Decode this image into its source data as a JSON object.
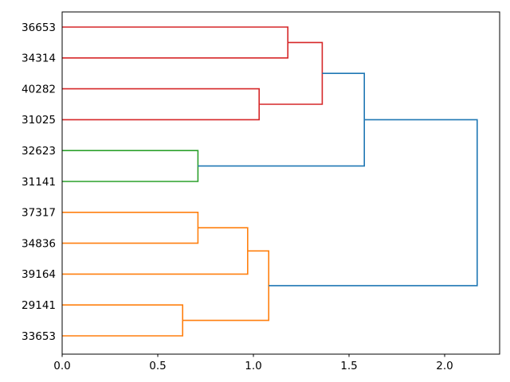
{
  "figure": {
    "background": "#ffffff",
    "frame_color": "#000000"
  },
  "chart_data": {
    "type": "dendrogram",
    "orientation": "leaves-left-root-right",
    "title": "",
    "xlabel": "",
    "ylabel": "",
    "grid": false,
    "legend": null,
    "xlim": [
      0,
      2.2875
    ],
    "xtick_labels": [
      "0.0",
      "0.5",
      "1.0",
      "1.5",
      "2.0"
    ],
    "xtick_values": [
      0,
      0.5,
      1.0,
      1.5,
      2.0
    ],
    "leaves": [
      "36653",
      "34314",
      "40282",
      "31025",
      "32623",
      "31141",
      "37317",
      "34836",
      "39164",
      "29141",
      "33653"
    ],
    "merges": [
      {
        "id": "n-green-1",
        "children": [
          "32623",
          "31141"
        ],
        "distance": 0.71,
        "color": "green"
      },
      {
        "id": "n-red-1",
        "children": [
          "36653",
          "34314"
        ],
        "distance": 1.18,
        "color": "red"
      },
      {
        "id": "n-red-2",
        "children": [
          "40282",
          "31025"
        ],
        "distance": 1.03,
        "color": "red"
      },
      {
        "id": "n-red-3",
        "children": [
          "n-red-1",
          "n-red-2"
        ],
        "distance": 1.36,
        "color": "red"
      },
      {
        "id": "n-blue-1",
        "children": [
          "n-red-3",
          "n-green-1"
        ],
        "distance": 1.58,
        "color": "blue"
      },
      {
        "id": "n-orange-1",
        "children": [
          "37317",
          "34836"
        ],
        "distance": 0.71,
        "color": "orange"
      },
      {
        "id": "n-orange-2",
        "children": [
          "n-orange-1",
          "39164"
        ],
        "distance": 0.97,
        "color": "orange"
      },
      {
        "id": "n-orange-3",
        "children": [
          "29141",
          "33653"
        ],
        "distance": 0.63,
        "color": "orange"
      },
      {
        "id": "n-orange-4",
        "children": [
          "n-orange-2",
          "n-orange-3"
        ],
        "distance": 1.08,
        "color": "orange"
      },
      {
        "id": "n-root",
        "children": [
          "n-blue-1",
          "n-orange-4"
        ],
        "distance": 2.17,
        "color": "blue"
      }
    ],
    "palette": {
      "blue": "#1f77b4",
      "orange": "#ff7f0e",
      "green": "#2ca02c",
      "red": "#d62728"
    }
  }
}
